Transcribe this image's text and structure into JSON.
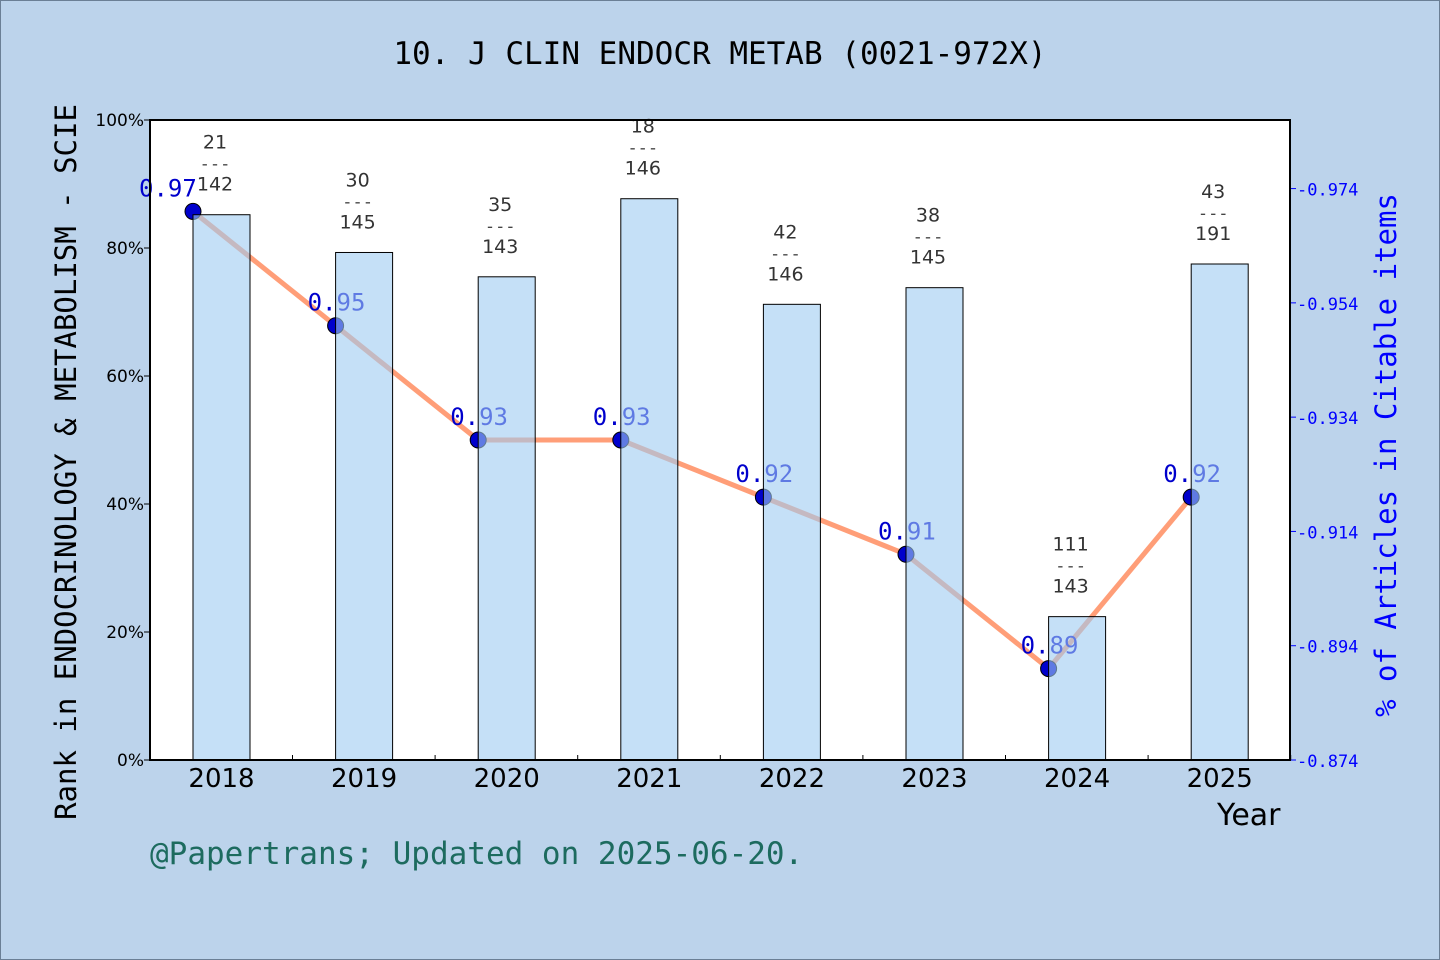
{
  "chart_data": {
    "type": "bar+line",
    "title": "10. J CLIN ENDOCR METAB (0021-972X)",
    "xlabel": "Year",
    "ylabel": "Rank in ENDOCRINOLOGY & METABOLISM - SCIE",
    "y2label": "% of Articles in Citable items",
    "categories": [
      "2018",
      "2019",
      "2020",
      "2021",
      "2022",
      "2023",
      "2024",
      "2025"
    ],
    "ylim": [
      0,
      100
    ],
    "yticks": [
      "0%",
      "20%",
      "40%",
      "60%",
      "80%",
      "100%"
    ],
    "y2lim": [
      0.874,
      0.986
    ],
    "y2ticks": [
      "0.874",
      "0.894",
      "0.914",
      "0.934",
      "0.954",
      "0.974"
    ],
    "bars": {
      "rank": [
        21,
        30,
        35,
        18,
        42,
        38,
        111,
        43
      ],
      "total": [
        142,
        145,
        143,
        146,
        146,
        145,
        143,
        191
      ],
      "values_percent": [
        85.2,
        79.3,
        75.5,
        87.7,
        71.2,
        73.8,
        22.4,
        77.5
      ],
      "color": "#9ecbf2"
    },
    "line": {
      "values": [
        0.97,
        0.95,
        0.93,
        0.93,
        0.92,
        0.91,
        0.89,
        0.92
      ],
      "labels": [
        "0.97",
        "0.95",
        "0.93",
        "0.93",
        "0.92",
        "0.91",
        "0.89",
        "0.92"
      ],
      "color": "#ff9e78",
      "marker_color": "#0000cc"
    },
    "grid": false
  },
  "credit": "@Papertrans; Updated on 2025-06-20."
}
